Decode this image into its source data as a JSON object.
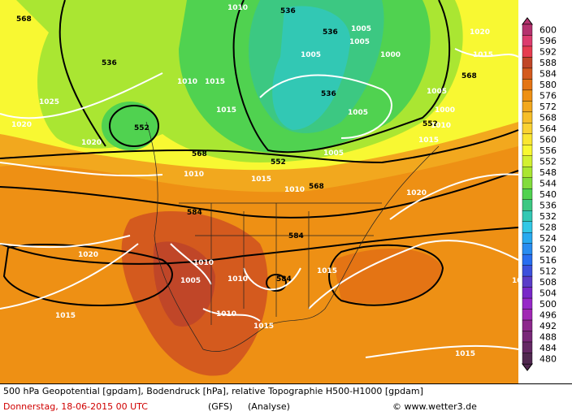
{
  "map": {
    "contour_labels": [
      "568",
      "536",
      "536",
      "568",
      "1005",
      "1005",
      "1010",
      "1015",
      "1025",
      "552",
      "1020",
      "1020",
      "536",
      "536",
      "1005",
      "1005",
      "552",
      "1010",
      "1015",
      "1010",
      "568",
      "1020",
      "1015",
      "568",
      "1005",
      "552",
      "1000",
      "1000",
      "1010",
      "1015",
      "1005",
      "1020",
      "1015",
      "1010",
      "584",
      "584",
      "1020",
      "1010",
      "1005",
      "1010",
      "584",
      "1015",
      "1015",
      "1010",
      "1015",
      "1015",
      "1010"
    ],
    "colorbar": {
      "labels": [
        600,
        596,
        592,
        588,
        584,
        580,
        576,
        572,
        568,
        564,
        560,
        556,
        552,
        548,
        544,
        540,
        536,
        532,
        528,
        524,
        520,
        516,
        512,
        508,
        504,
        500,
        496,
        492,
        488,
        484,
        480
      ],
      "colors": [
        "#b4326e",
        "#dc3c6e",
        "#e63c50",
        "#c04628",
        "#d45a1e",
        "#e47414",
        "#ee9014",
        "#f2a81e",
        "#f6be28",
        "#fad232",
        "#fae632",
        "#f8f832",
        "#d2f032",
        "#aae632",
        "#82dc3c",
        "#50d250",
        "#3cc882",
        "#32c8b4",
        "#32c8e6",
        "#28aaf0",
        "#288cf0",
        "#286ef0",
        "#3c50dc",
        "#5a3cc8",
        "#7828c8",
        "#9628c8",
        "#a028b4",
        "#8c288c",
        "#782878",
        "#642864",
        "#502850"
      ]
    },
    "footer": {
      "line1": "500 hPa Geopotential [gpdam], Bodendruck [hPa], relative Topographie H500-H1000 [gpdam]",
      "date": "Donnerstag, 18-06-2015  00 UTC",
      "model": "(GFS)",
      "kind": "(Analyse)",
      "credit": "© www.wetter3.de"
    }
  }
}
